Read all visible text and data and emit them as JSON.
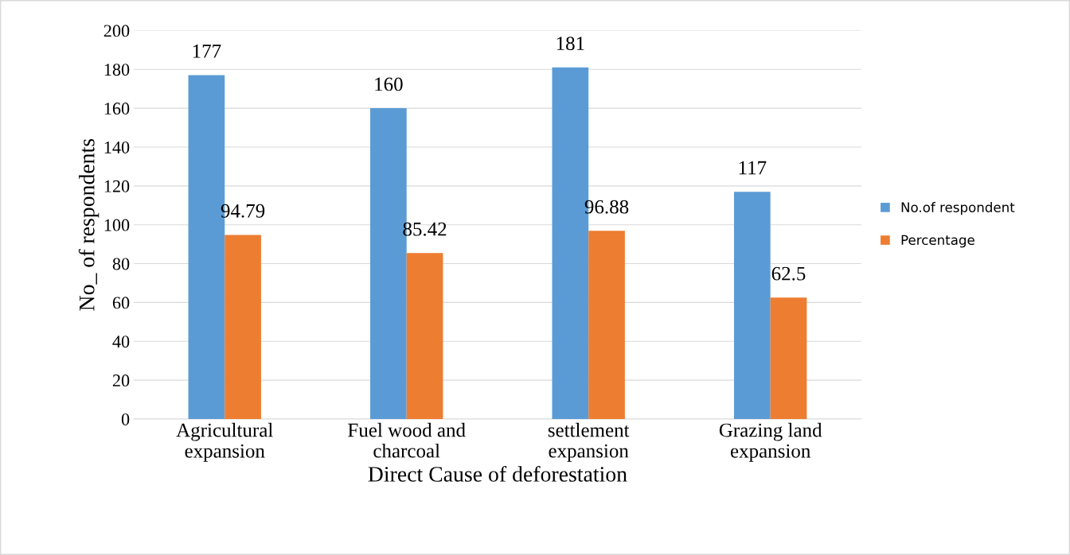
{
  "chart_data": {
    "type": "bar",
    "xlabel": "Direct Cause of deforestation",
    "ylabel": "No_ of respondents",
    "categories": [
      "Agricultural\nexpansion",
      "Fuel wood and\ncharcoal",
      "settlement\nexpansion",
      "Grazing land\nexpansion"
    ],
    "series": [
      {
        "name": "No.of respondent",
        "color": "#5b9bd5",
        "values": [
          177,
          160,
          181,
          117
        ]
      },
      {
        "name": "Percentage",
        "color": "#ed7d31",
        "values": [
          94.79,
          85.42,
          96.88,
          62.5
        ]
      }
    ],
    "ylim": [
      0,
      200
    ],
    "yticks": [
      0,
      20,
      40,
      60,
      80,
      100,
      120,
      140,
      160,
      180,
      200
    ],
    "grid": "y",
    "legend": "right",
    "data_labels": true
  }
}
